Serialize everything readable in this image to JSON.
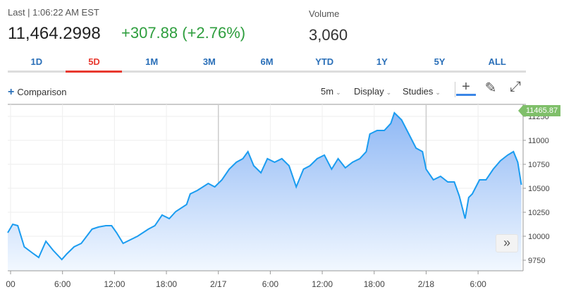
{
  "header": {
    "last_label": "Last | 1:06:22 AM EST",
    "price": "11,464.2998",
    "change": "+307.88 (+2.76%)",
    "volume_label": "Volume",
    "volume": "3,060"
  },
  "tabs": [
    {
      "label": "1D"
    },
    {
      "label": "5D",
      "active": true
    },
    {
      "label": "1M"
    },
    {
      "label": "3M"
    },
    {
      "label": "6M"
    },
    {
      "label": "YTD"
    },
    {
      "label": "1Y"
    },
    {
      "label": "5Y"
    },
    {
      "label": "ALL"
    }
  ],
  "toolbar": {
    "comparison": "Comparison",
    "interval": "5m",
    "display": "Display",
    "studies": "Studies",
    "icons": [
      "crosshair-icon",
      "pencil-icon",
      "expand-icon"
    ]
  },
  "price_flag": "11465.87",
  "more_button": "»",
  "colors": {
    "line": "#1a9cf0",
    "fill_top": "#8fb8f5",
    "up": "#2e9e3e",
    "active_tab": "#e8392f",
    "tab": "#2a6fb8",
    "flag": "#7fbf6a"
  },
  "chart_data": {
    "type": "area",
    "ylim": [
      9650,
      11350
    ],
    "yticks": [
      9750,
      10000,
      10250,
      10500,
      10750,
      11000,
      11250
    ],
    "y_axis_position": "right",
    "xlim": [
      "2/15 23:40",
      "2/18 11:05"
    ],
    "xticks": [
      {
        "t": "2/16 00:00",
        "label": "00"
      },
      {
        "t": "2/16 06:00",
        "label": "6:00"
      },
      {
        "t": "2/16 12:00",
        "label": "12:00"
      },
      {
        "t": "2/16 18:00",
        "label": "18:00"
      },
      {
        "t": "2/17 00:00",
        "label": "2/17"
      },
      {
        "t": "2/17 06:00",
        "label": "6:00"
      },
      {
        "t": "2/17 12:00",
        "label": "12:00"
      },
      {
        "t": "2/17 18:00",
        "label": "18:00"
      },
      {
        "t": "2/18 00:00",
        "label": "2/18"
      },
      {
        "t": "2/18 06:00",
        "label": "6:00"
      }
    ],
    "grid": true,
    "points": [
      [
        "2/15 23:40",
        10037
      ],
      [
        "2/16 00:15",
        10125
      ],
      [
        "2/16 00:50",
        10110
      ],
      [
        "2/16 01:35",
        9890
      ],
      [
        "2/16 02:40",
        9816
      ],
      [
        "2/16 03:15",
        9779
      ],
      [
        "2/16 04:05",
        9948
      ],
      [
        "2/16 04:55",
        9853
      ],
      [
        "2/16 05:55",
        9757
      ],
      [
        "2/16 06:30",
        9816
      ],
      [
        "2/16 07:20",
        9890
      ],
      [
        "2/16 08:10",
        9926
      ],
      [
        "2/16 09:25",
        10074
      ],
      [
        "2/16 10:10",
        10096
      ],
      [
        "2/16 11:00",
        10110
      ],
      [
        "2/16 11:40",
        10110
      ],
      [
        "2/16 12:15",
        10037
      ],
      [
        "2/16 13:00",
        9926
      ],
      [
        "2/16 13:50",
        9963
      ],
      [
        "2/16 14:40",
        10000
      ],
      [
        "2/16 15:55",
        10074
      ],
      [
        "2/16 16:40",
        10110
      ],
      [
        "2/16 17:30",
        10221
      ],
      [
        "2/16 18:20",
        10184
      ],
      [
        "2/16 19:05",
        10257
      ],
      [
        "2/16 20:20",
        10331
      ],
      [
        "2/16 20:45",
        10441
      ],
      [
        "2/16 21:35",
        10478
      ],
      [
        "2/16 22:50",
        10551
      ],
      [
        "2/16 23:35",
        10515
      ],
      [
        "2/17 00:25",
        10588
      ],
      [
        "2/17 01:15",
        10699
      ],
      [
        "2/17 02:05",
        10772
      ],
      [
        "2/17 02:50",
        10809
      ],
      [
        "2/17 03:25",
        10882
      ],
      [
        "2/17 04:05",
        10735
      ],
      [
        "2/17 04:55",
        10662
      ],
      [
        "2/17 05:40",
        10809
      ],
      [
        "2/17 06:30",
        10772
      ],
      [
        "2/17 07:20",
        10809
      ],
      [
        "2/17 08:10",
        10735
      ],
      [
        "2/17 09:00",
        10515
      ],
      [
        "2/17 09:50",
        10699
      ],
      [
        "2/17 10:35",
        10735
      ],
      [
        "2/17 11:25",
        10809
      ],
      [
        "2/17 12:15",
        10846
      ],
      [
        "2/17 13:05",
        10699
      ],
      [
        "2/17 13:50",
        10809
      ],
      [
        "2/17 14:40",
        10713
      ],
      [
        "2/17 15:30",
        10772
      ],
      [
        "2/17 16:20",
        10809
      ],
      [
        "2/17 17:05",
        10882
      ],
      [
        "2/17 17:30",
        11066
      ],
      [
        "2/17 18:20",
        11103
      ],
      [
        "2/17 19:10",
        11103
      ],
      [
        "2/17 19:55",
        11176
      ],
      [
        "2/17 20:20",
        11287
      ],
      [
        "2/17 21:10",
        11213
      ],
      [
        "2/17 22:00",
        11066
      ],
      [
        "2/17 22:50",
        10919
      ],
      [
        "2/17 23:35",
        10882
      ],
      [
        "2/18 00:00",
        10699
      ],
      [
        "2/18 00:50",
        10588
      ],
      [
        "2/18 01:40",
        10625
      ],
      [
        "2/18 02:30",
        10566
      ],
      [
        "2/18 03:15",
        10566
      ],
      [
        "2/18 03:50",
        10419
      ],
      [
        "2/18 04:30",
        10184
      ],
      [
        "2/18 04:55",
        10404
      ],
      [
        "2/18 05:20",
        10441
      ],
      [
        "2/18 06:10",
        10588
      ],
      [
        "2/18 06:55",
        10588
      ],
      [
        "2/18 07:45",
        10699
      ],
      [
        "2/18 08:35",
        10787
      ],
      [
        "2/18 09:25",
        10846
      ],
      [
        "2/18 10:05",
        10882
      ],
      [
        "2/18 10:35",
        10772
      ],
      [
        "2/18 11:00",
        10537
      ]
    ]
  }
}
